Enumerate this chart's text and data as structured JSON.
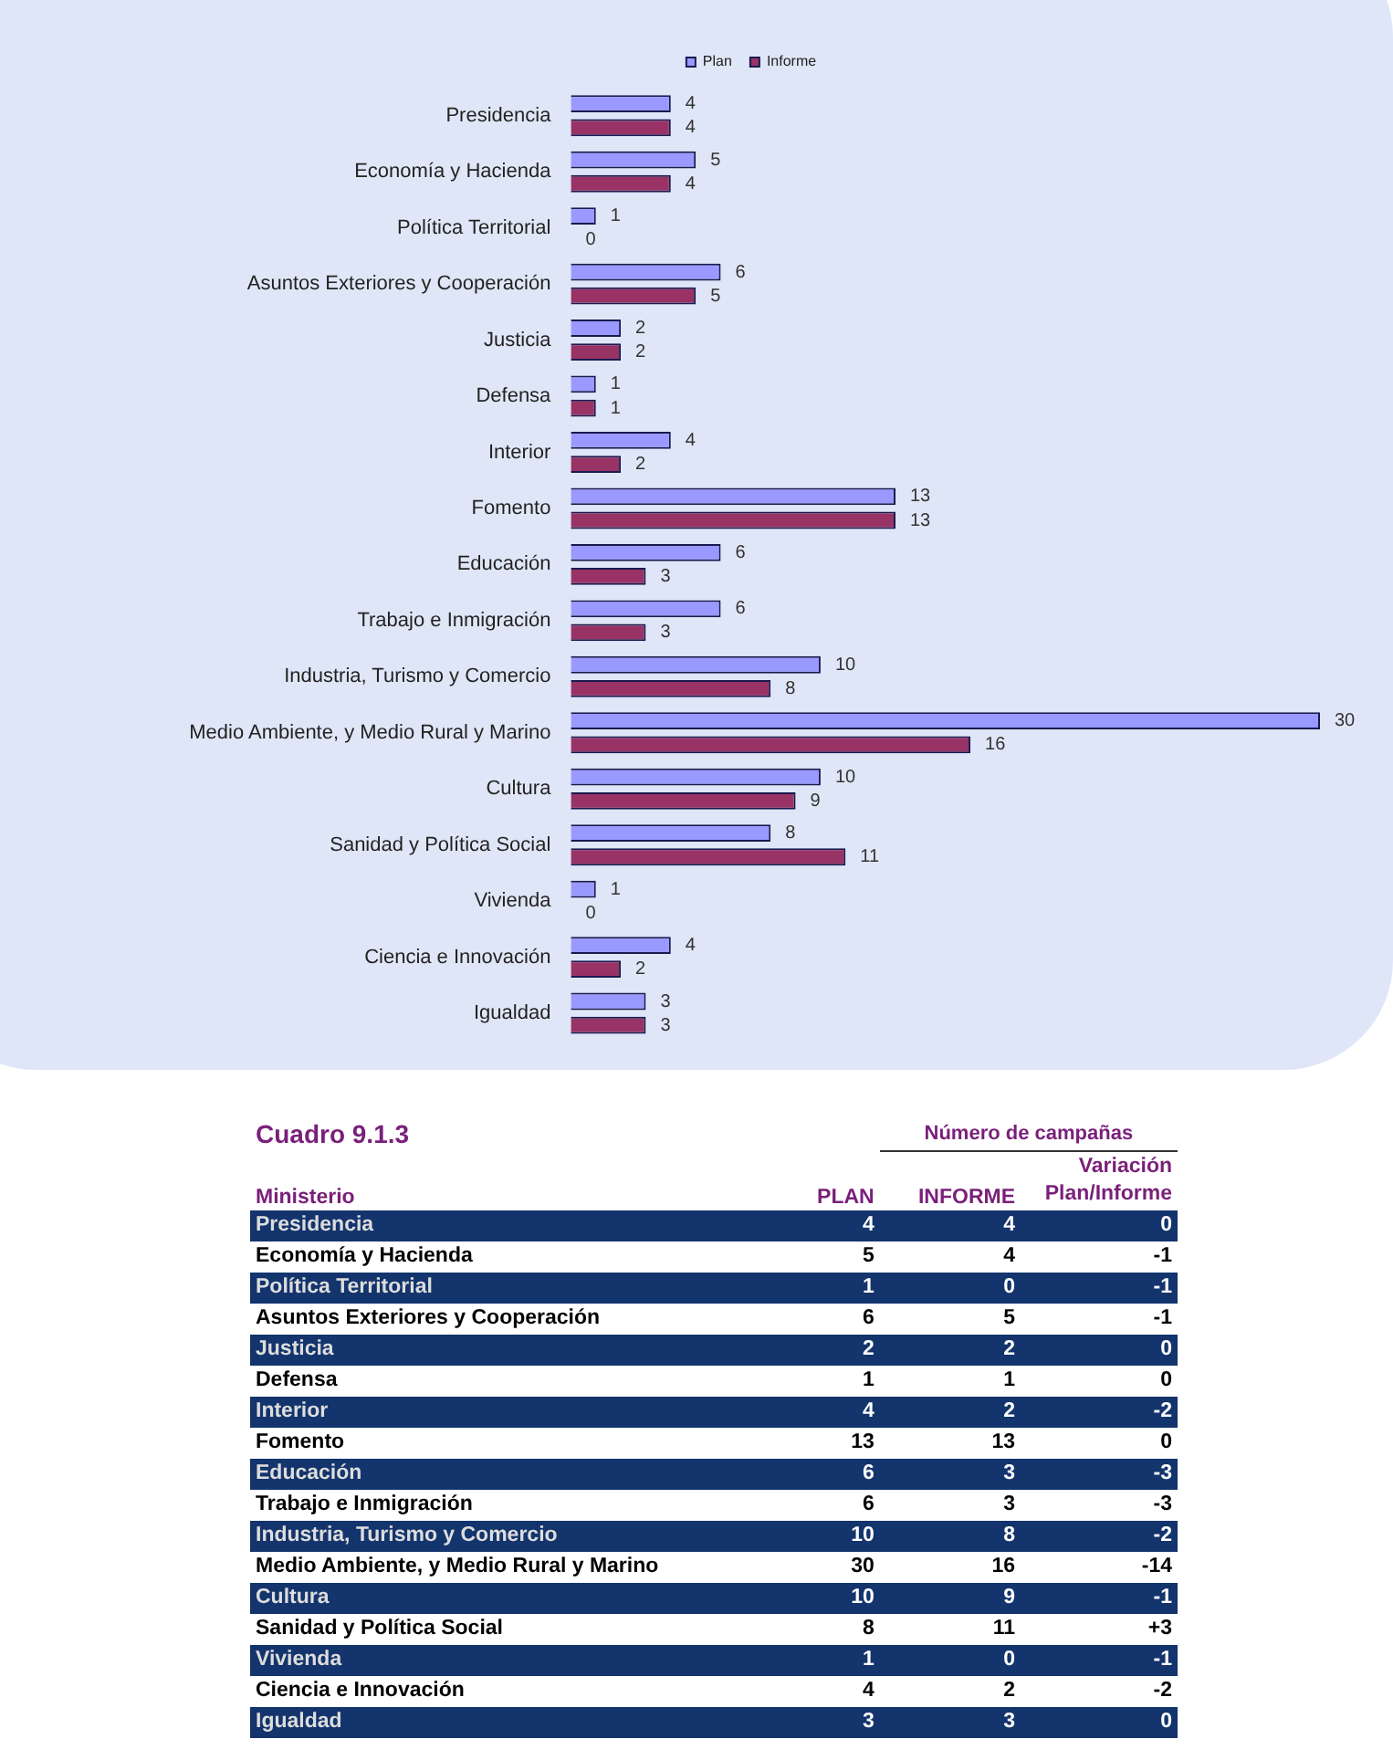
{
  "chart_data": {
    "type": "bar",
    "orientation": "horizontal",
    "legend": "top",
    "data_labels": true,
    "categories": [
      "Presidencia",
      "Economía y Hacienda",
      "Política Territorial",
      "Asuntos Exteriores y Cooperación",
      "Justicia",
      "Defensa",
      "Interior",
      "Fomento",
      "Educación",
      "Trabajo e Inmigración",
      "Industria, Turismo y Comercio",
      "Medio Ambiente, y Medio Rural y Marino",
      "Cultura",
      "Sanidad y Política Social",
      "Vivienda",
      "Ciencia e Innovación",
      "Igualdad"
    ],
    "series": [
      {
        "name": "Plan",
        "color": "#9999ff",
        "values": [
          4,
          5,
          1,
          6,
          2,
          1,
          4,
          13,
          6,
          6,
          10,
          30,
          10,
          8,
          1,
          4,
          3
        ]
      },
      {
        "name": "Informe",
        "color": "#993366",
        "values": [
          4,
          4,
          0,
          5,
          2,
          1,
          2,
          13,
          3,
          3,
          8,
          16,
          9,
          11,
          0,
          2,
          3
        ]
      }
    ],
    "annotations": [
      "Cuadro 9.1.3",
      "Número de campañas",
      "Ministerio",
      "PLAN",
      "INFORME",
      "Variación Plan/Informe",
      "4",
      "4",
      "0",
      "5",
      "4",
      "-1",
      "1",
      "0",
      "-1",
      "6",
      "5",
      "-1",
      "2",
      "2",
      "0",
      "1",
      "1",
      "0",
      "4",
      "2",
      "-2",
      "13",
      "13",
      "0",
      "6",
      "3",
      "-3",
      "6",
      "3",
      "-3",
      "10",
      "8",
      "-2",
      "30",
      "16",
      "-14",
      "10",
      "9",
      "-1",
      "8",
      "11",
      "+3",
      "1",
      "0",
      "-1",
      "4",
      "2",
      "-2",
      "3",
      "3",
      "0"
    ]
  }
}
